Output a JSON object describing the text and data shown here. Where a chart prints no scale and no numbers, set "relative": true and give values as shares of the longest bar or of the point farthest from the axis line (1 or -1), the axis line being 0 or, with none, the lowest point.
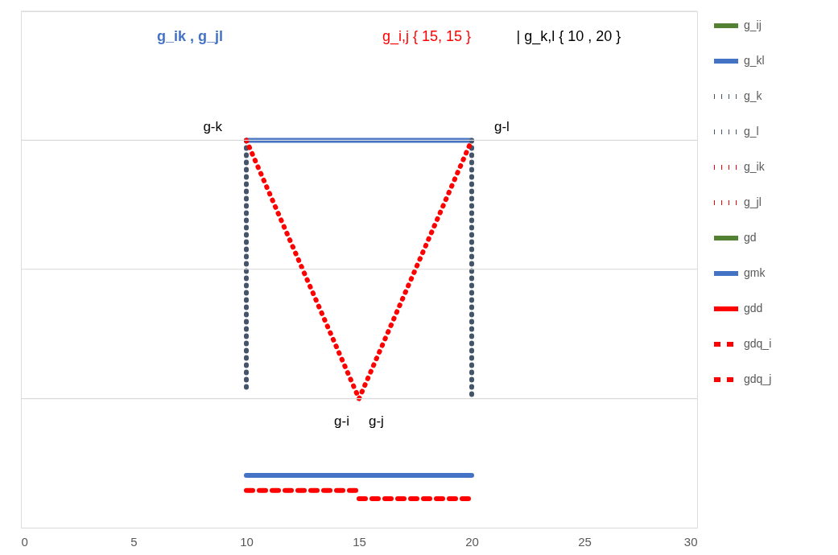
{
  "chart_data": {
    "type": "line",
    "relative": true,
    "xlim": [
      0,
      30
    ],
    "xticks": [
      0,
      5,
      10,
      15,
      20,
      25,
      30
    ],
    "ref_lines": [
      {
        "axis": "y",
        "value": 0.333,
        "color": "#d9d9d9"
      },
      {
        "axis": "y",
        "value": 0.667,
        "color": "#d9d9d9"
      },
      {
        "axis": "y",
        "value": 1,
        "color": "#d9d9d9"
      },
      {
        "axis": "y",
        "value": 1.333,
        "color": "#d9d9d9"
      }
    ],
    "legend": "right",
    "marker": "none",
    "series": [
      {
        "name": "g_ij",
        "color": "#548235",
        "line_style": "solid",
        "values": [
          null
        ]
      },
      {
        "name": "g_kl",
        "color": "#4472c4",
        "line_style": "solid",
        "x": [
          10,
          20
        ],
        "values": [
          1,
          1
        ]
      },
      {
        "name": "g_k",
        "color": "#44546a",
        "line_style": "dotted",
        "x": [
          10,
          10
        ],
        "values": [
          1,
          0.349
        ]
      },
      {
        "name": "g_l",
        "color": "#44546a",
        "line_style": "dotted",
        "x": [
          20,
          20
        ],
        "values": [
          1,
          0.333
        ]
      },
      {
        "name": "g_ik",
        "color": "#ff0000",
        "line_style": "dotted",
        "x": [
          10,
          15
        ],
        "values": [
          1,
          0.333
        ]
      },
      {
        "name": "g_jl",
        "color": "#ff0000",
        "line_style": "dotted",
        "x": [
          15,
          20
        ],
        "values": [
          0.333,
          1
        ]
      },
      {
        "name": "gd",
        "color": "#548235",
        "line_style": "solid",
        "values": [
          null
        ]
      },
      {
        "name": "gmk",
        "color": "#4472c4",
        "line_style": "solid",
        "x": [
          10,
          20
        ],
        "values": [
          0.135,
          0.135
        ]
      },
      {
        "name": "gdd",
        "color": "#ff0000",
        "line_style": "solid",
        "values": [
          null
        ]
      },
      {
        "name": "gdq_i",
        "color": "#ff0000",
        "line_style": "dashed",
        "x": [
          10,
          15
        ],
        "values": [
          0.096,
          0.096
        ]
      },
      {
        "name": "gdq_j",
        "color": "#ff0000",
        "line_style": "dashed",
        "x": [
          15,
          20
        ],
        "values": [
          0.075,
          0.075
        ]
      }
    ],
    "annotations": [
      "g_ik  ,  g_jl",
      "g_i,j  { 15, 15 }",
      "|  g_k,l  { 10 , 20 }",
      {
        "text": "g-k",
        "x": 10,
        "y": 1
      },
      {
        "text": "g-l",
        "x": 20,
        "y": 1
      },
      {
        "text": "g-i",
        "x": 15,
        "y": 0.333
      },
      {
        "text": "g-j",
        "x": 15,
        "y": 0.333
      }
    ]
  }
}
